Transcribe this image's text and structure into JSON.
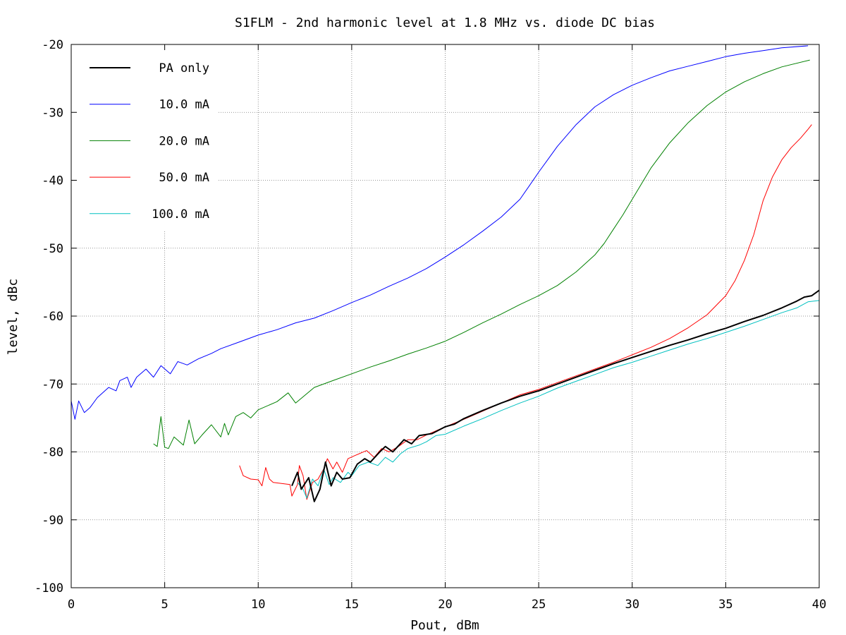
{
  "chart_data": {
    "type": "line",
    "title": "S1FLM - 2nd harmonic level at 1.8 MHz vs. diode DC bias",
    "xlabel": "Pout, dBm",
    "ylabel": "level, dBc",
    "xlim": [
      0,
      40
    ],
    "ylim": [
      -100,
      -20
    ],
    "x_ticks": [
      0,
      5,
      10,
      15,
      20,
      25,
      30,
      35,
      40
    ],
    "y_ticks": [
      -100,
      -90,
      -80,
      -70,
      -60,
      -50,
      -40,
      -30,
      -20
    ],
    "grid": true,
    "legend_position": "top-left",
    "series": [
      {
        "name": "PA only",
        "color": "#000000",
        "points": [
          [
            11.8,
            -85
          ],
          [
            12.1,
            -83
          ],
          [
            12.3,
            -85.5
          ],
          [
            12.7,
            -83.8
          ],
          [
            13.0,
            -87.3
          ],
          [
            13.3,
            -85.5
          ],
          [
            13.6,
            -81.5
          ],
          [
            13.9,
            -85
          ],
          [
            14.2,
            -83
          ],
          [
            14.5,
            -84
          ],
          [
            14.9,
            -83.8
          ],
          [
            15.3,
            -81.8
          ],
          [
            15.7,
            -81
          ],
          [
            16.0,
            -81.5
          ],
          [
            16.5,
            -80
          ],
          [
            16.8,
            -79.2
          ],
          [
            17.2,
            -80
          ],
          [
            17.8,
            -78.2
          ],
          [
            18.2,
            -78.8
          ],
          [
            18.6,
            -77.6
          ],
          [
            19.3,
            -77.3
          ],
          [
            20.0,
            -76.3
          ],
          [
            20.5,
            -75.9
          ],
          [
            21,
            -75.1
          ],
          [
            22,
            -73.9
          ],
          [
            23,
            -72.8
          ],
          [
            24,
            -71.8
          ],
          [
            25,
            -71.0
          ],
          [
            26,
            -70.0
          ],
          [
            27,
            -69.0
          ],
          [
            28,
            -68.0
          ],
          [
            29,
            -67.0
          ],
          [
            30,
            -66.1
          ],
          [
            31,
            -65.2
          ],
          [
            32,
            -64.3
          ],
          [
            33,
            -63.5
          ],
          [
            34,
            -62.6
          ],
          [
            35,
            -61.8
          ],
          [
            36,
            -60.8
          ],
          [
            37,
            -59.9
          ],
          [
            38,
            -58.8
          ],
          [
            38.8,
            -57.8
          ],
          [
            39.2,
            -57.2
          ],
          [
            39.6,
            -57.0
          ],
          [
            40,
            -56.2
          ]
        ]
      },
      {
        "name": "10.0 mA",
        "color": "#0000ff",
        "points": [
          [
            0,
            -72.5
          ],
          [
            0.2,
            -75.2
          ],
          [
            0.4,
            -72.5
          ],
          [
            0.7,
            -74.2
          ],
          [
            1.0,
            -73.5
          ],
          [
            1.4,
            -72.0
          ],
          [
            2.0,
            -70.5
          ],
          [
            2.4,
            -71.0
          ],
          [
            2.6,
            -69.5
          ],
          [
            3.0,
            -69.0
          ],
          [
            3.2,
            -70.5
          ],
          [
            3.5,
            -69.0
          ],
          [
            4.0,
            -67.8
          ],
          [
            4.4,
            -69.0
          ],
          [
            4.8,
            -67.3
          ],
          [
            5.3,
            -68.5
          ],
          [
            5.7,
            -66.7
          ],
          [
            6.2,
            -67.2
          ],
          [
            6.8,
            -66.3
          ],
          [
            7.5,
            -65.5
          ],
          [
            8,
            -64.8
          ],
          [
            9,
            -63.8
          ],
          [
            10,
            -62.8
          ],
          [
            11,
            -62.0
          ],
          [
            12,
            -61.0
          ],
          [
            13,
            -60.3
          ],
          [
            14,
            -59.2
          ],
          [
            15,
            -58.0
          ],
          [
            16,
            -56.9
          ],
          [
            17,
            -55.6
          ],
          [
            18,
            -54.4
          ],
          [
            19,
            -53.0
          ],
          [
            20,
            -51.3
          ],
          [
            21,
            -49.5
          ],
          [
            22,
            -47.5
          ],
          [
            23,
            -45.4
          ],
          [
            24,
            -42.8
          ],
          [
            24.5,
            -40.8
          ],
          [
            25,
            -38.8
          ],
          [
            25.5,
            -36.9
          ],
          [
            26,
            -35.0
          ],
          [
            27,
            -31.8
          ],
          [
            28,
            -29.2
          ],
          [
            29,
            -27.4
          ],
          [
            30,
            -26.0
          ],
          [
            31,
            -24.9
          ],
          [
            32,
            -23.9
          ],
          [
            33,
            -23.2
          ],
          [
            34,
            -22.5
          ],
          [
            35,
            -21.8
          ],
          [
            36,
            -21.3
          ],
          [
            37,
            -20.9
          ],
          [
            38,
            -20.5
          ],
          [
            39.4,
            -20.2
          ]
        ]
      },
      {
        "name": "20.0 mA",
        "color": "#008000",
        "points": [
          [
            4.4,
            -78.8
          ],
          [
            4.6,
            -79.2
          ],
          [
            4.8,
            -74.8
          ],
          [
            5.0,
            -79.3
          ],
          [
            5.2,
            -79.5
          ],
          [
            5.5,
            -77.8
          ],
          [
            6.0,
            -79.0
          ],
          [
            6.3,
            -75.3
          ],
          [
            6.6,
            -78.8
          ],
          [
            7.0,
            -77.5
          ],
          [
            7.5,
            -76.0
          ],
          [
            8.0,
            -77.8
          ],
          [
            8.2,
            -75.8
          ],
          [
            8.4,
            -77.5
          ],
          [
            8.8,
            -74.8
          ],
          [
            9.2,
            -74.2
          ],
          [
            9.6,
            -75.0
          ],
          [
            10,
            -73.8
          ],
          [
            11,
            -72.6
          ],
          [
            11.6,
            -71.3
          ],
          [
            12,
            -72.8
          ],
          [
            13,
            -70.5
          ],
          [
            14,
            -69.5
          ],
          [
            15,
            -68.5
          ],
          [
            16,
            -67.5
          ],
          [
            17,
            -66.6
          ],
          [
            18,
            -65.6
          ],
          [
            19,
            -64.7
          ],
          [
            20,
            -63.7
          ],
          [
            21,
            -62.4
          ],
          [
            22,
            -61.0
          ],
          [
            23,
            -59.7
          ],
          [
            24,
            -58.3
          ],
          [
            25,
            -57.0
          ],
          [
            26,
            -55.5
          ],
          [
            27,
            -53.5
          ],
          [
            28,
            -51.0
          ],
          [
            28.5,
            -49.3
          ],
          [
            29,
            -47.2
          ],
          [
            29.5,
            -45.1
          ],
          [
            30,
            -42.8
          ],
          [
            31,
            -38.2
          ],
          [
            32,
            -34.5
          ],
          [
            33,
            -31.5
          ],
          [
            34,
            -29.0
          ],
          [
            35,
            -27.0
          ],
          [
            36,
            -25.5
          ],
          [
            37,
            -24.3
          ],
          [
            38,
            -23.3
          ],
          [
            39.5,
            -22.3
          ]
        ]
      },
      {
        "name": "50.0 mA",
        "color": "#ff0000",
        "points": [
          [
            9.0,
            -82.0
          ],
          [
            9.2,
            -83.5
          ],
          [
            9.6,
            -84.0
          ],
          [
            10.0,
            -84.1
          ],
          [
            10.2,
            -85.0
          ],
          [
            10.4,
            -82.3
          ],
          [
            10.6,
            -84.0
          ],
          [
            10.8,
            -84.5
          ],
          [
            11.7,
            -84.8
          ],
          [
            11.8,
            -86.5
          ],
          [
            12.1,
            -84.8
          ],
          [
            12.2,
            -82.0
          ],
          [
            12.4,
            -83.5
          ],
          [
            12.6,
            -87.0
          ],
          [
            12.9,
            -84.5
          ],
          [
            13.2,
            -84.0
          ],
          [
            13.5,
            -82.5
          ],
          [
            13.7,
            -81.0
          ],
          [
            14.0,
            -82.5
          ],
          [
            14.2,
            -81.5
          ],
          [
            14.5,
            -83.0
          ],
          [
            14.8,
            -81.0
          ],
          [
            15.2,
            -80.5
          ],
          [
            15.8,
            -79.8
          ],
          [
            16.2,
            -80.8
          ],
          [
            16.6,
            -79.5
          ],
          [
            17.0,
            -80.0
          ],
          [
            17.5,
            -79.2
          ],
          [
            18,
            -78.2
          ],
          [
            18.5,
            -78.2
          ],
          [
            19,
            -77.5
          ],
          [
            20,
            -76.3
          ],
          [
            21,
            -75.2
          ],
          [
            22,
            -74.0
          ],
          [
            23,
            -72.8
          ],
          [
            24,
            -71.6
          ],
          [
            25,
            -70.8
          ],
          [
            26,
            -69.8
          ],
          [
            27,
            -68.8
          ],
          [
            28,
            -67.8
          ],
          [
            29,
            -66.8
          ],
          [
            30,
            -65.7
          ],
          [
            31,
            -64.6
          ],
          [
            32,
            -63.3
          ],
          [
            33,
            -61.7
          ],
          [
            34,
            -59.8
          ],
          [
            35,
            -57.0
          ],
          [
            35.5,
            -54.8
          ],
          [
            36,
            -51.8
          ],
          [
            36.5,
            -48.0
          ],
          [
            37,
            -43.0
          ],
          [
            37.5,
            -39.5
          ],
          [
            38,
            -37.0
          ],
          [
            38.5,
            -35.2
          ],
          [
            39,
            -33.8
          ],
          [
            39.4,
            -32.5
          ],
          [
            39.6,
            -31.8
          ]
        ]
      },
      {
        "name": "100.0 mA",
        "color": "#00c0c0",
        "points": [
          [
            12.1,
            -84.5
          ],
          [
            12.4,
            -85.5
          ],
          [
            12.6,
            -86.8
          ],
          [
            12.9,
            -84.0
          ],
          [
            13.2,
            -85.0
          ],
          [
            13.5,
            -82.5
          ],
          [
            13.8,
            -84.8
          ],
          [
            14.0,
            -83.8
          ],
          [
            14.4,
            -84.5
          ],
          [
            14.8,
            -83.0
          ],
          [
            15.0,
            -83.5
          ],
          [
            15.4,
            -82.0
          ],
          [
            15.9,
            -81.5
          ],
          [
            16.4,
            -82.0
          ],
          [
            16.8,
            -80.8
          ],
          [
            17.2,
            -81.5
          ],
          [
            17.6,
            -80.3
          ],
          [
            18.0,
            -79.5
          ],
          [
            18.6,
            -79.0
          ],
          [
            19.0,
            -78.5
          ],
          [
            19.5,
            -77.6
          ],
          [
            20,
            -77.4
          ],
          [
            21,
            -76.2
          ],
          [
            22,
            -75.1
          ],
          [
            23,
            -73.9
          ],
          [
            24,
            -72.8
          ],
          [
            25,
            -71.8
          ],
          [
            26,
            -70.6
          ],
          [
            27,
            -69.6
          ],
          [
            28,
            -68.6
          ],
          [
            29,
            -67.6
          ],
          [
            30,
            -66.8
          ],
          [
            31,
            -65.9
          ],
          [
            32,
            -65.0
          ],
          [
            33,
            -64.1
          ],
          [
            34,
            -63.3
          ],
          [
            35,
            -62.4
          ],
          [
            36,
            -61.5
          ],
          [
            37,
            -60.5
          ],
          [
            38,
            -59.5
          ],
          [
            38.8,
            -58.8
          ],
          [
            39.4,
            -57.9
          ],
          [
            40,
            -57.7
          ]
        ]
      }
    ]
  }
}
